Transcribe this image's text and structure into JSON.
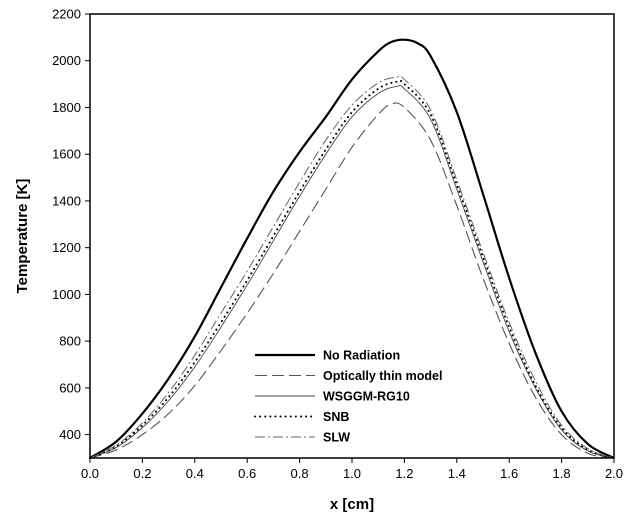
{
  "chart_data": {
    "type": "line",
    "xlabel": "x [cm]",
    "ylabel": "Temperature [K]",
    "xlim": [
      0.0,
      2.0
    ],
    "ylim": [
      300,
      2200
    ],
    "x_ticks": [
      "0.0",
      "0.2",
      "0.4",
      "0.6",
      "0.8",
      "1.0",
      "1.2",
      "1.4",
      "1.6",
      "1.8",
      "2.0"
    ],
    "y_ticks": [
      "400",
      "600",
      "800",
      "1000",
      "1200",
      "1400",
      "1600",
      "1800",
      "2000",
      "2200"
    ],
    "x_tick_values": [
      0.0,
      0.2,
      0.4,
      0.6,
      0.8,
      1.0,
      1.2,
      1.4,
      1.6,
      1.8,
      2.0
    ],
    "y_tick_values": [
      400,
      600,
      800,
      1000,
      1200,
      1400,
      1600,
      1800,
      2000,
      2200
    ],
    "grid": false,
    "legend_position": "lower-center",
    "series": [
      {
        "name": "No Radiation",
        "style": "solid-thick",
        "color": "#000000",
        "x": [
          0.0,
          0.1,
          0.2,
          0.3,
          0.4,
          0.5,
          0.6,
          0.7,
          0.8,
          0.9,
          1.0,
          1.1,
          1.15,
          1.2,
          1.25,
          1.3,
          1.4,
          1.5,
          1.6,
          1.7,
          1.8,
          1.9,
          2.0
        ],
        "y": [
          300,
          370,
          490,
          640,
          820,
          1030,
          1240,
          1440,
          1610,
          1760,
          1920,
          2040,
          2080,
          2090,
          2075,
          2020,
          1780,
          1430,
          1070,
          750,
          500,
          360,
          300
        ]
      },
      {
        "name": "Optically thin model",
        "style": "long-dash",
        "color": "#555555",
        "x": [
          0.0,
          0.1,
          0.2,
          0.3,
          0.4,
          0.5,
          0.6,
          0.7,
          0.8,
          0.9,
          1.0,
          1.1,
          1.15,
          1.2,
          1.3,
          1.4,
          1.5,
          1.6,
          1.7,
          1.8,
          1.9,
          2.0
        ],
        "y": [
          300,
          335,
          400,
          490,
          610,
          760,
          920,
          1090,
          1270,
          1450,
          1630,
          1770,
          1815,
          1800,
          1660,
          1380,
          1070,
          790,
          560,
          400,
          320,
          300
        ]
      },
      {
        "name": "WSGGM-RG10",
        "style": "solid-thin",
        "color": "#444444",
        "x": [
          0.0,
          0.1,
          0.2,
          0.3,
          0.4,
          0.5,
          0.6,
          0.7,
          0.8,
          0.9,
          1.0,
          1.1,
          1.17,
          1.2,
          1.3,
          1.4,
          1.5,
          1.6,
          1.7,
          1.8,
          1.9,
          2.0
        ],
        "y": [
          300,
          345,
          430,
          545,
          690,
          860,
          1040,
          1230,
          1420,
          1600,
          1760,
          1860,
          1890,
          1880,
          1750,
          1450,
          1140,
          840,
          600,
          420,
          330,
          300
        ]
      },
      {
        "name": "SNB",
        "style": "dotted",
        "color": "#000000",
        "x": [
          0.0,
          0.1,
          0.2,
          0.3,
          0.4,
          0.5,
          0.6,
          0.7,
          0.8,
          0.9,
          1.0,
          1.1,
          1.17,
          1.2,
          1.3,
          1.4,
          1.5,
          1.6,
          1.7,
          1.8,
          1.9,
          2.0
        ],
        "y": [
          300,
          350,
          440,
          560,
          710,
          880,
          1060,
          1250,
          1440,
          1620,
          1780,
          1880,
          1910,
          1900,
          1770,
          1470,
          1160,
          860,
          610,
          430,
          335,
          300
        ]
      },
      {
        "name": "SLW",
        "style": "dash-dot",
        "color": "#666666",
        "x": [
          0.0,
          0.1,
          0.2,
          0.3,
          0.4,
          0.5,
          0.6,
          0.7,
          0.8,
          0.9,
          1.0,
          1.1,
          1.17,
          1.2,
          1.3,
          1.4,
          1.5,
          1.6,
          1.7,
          1.8,
          1.9,
          2.0
        ],
        "y": [
          300,
          355,
          450,
          580,
          740,
          920,
          1100,
          1290,
          1480,
          1660,
          1810,
          1905,
          1930,
          1920,
          1790,
          1490,
          1180,
          880,
          630,
          440,
          340,
          300
        ]
      }
    ]
  }
}
